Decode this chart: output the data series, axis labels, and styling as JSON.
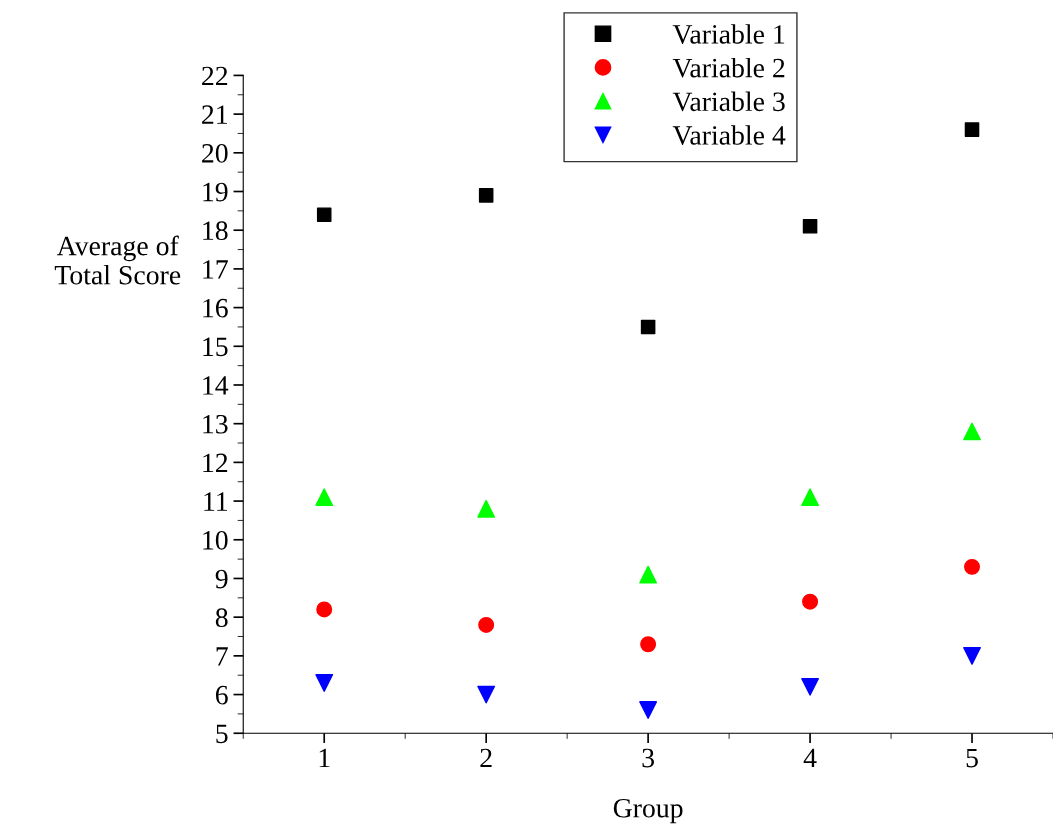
{
  "chart_data": {
    "type": "scatter",
    "xlabel": "Group",
    "ylabel": "Average of\nTotal Score",
    "x": [
      1,
      2,
      3,
      4,
      5
    ],
    "series": [
      {
        "name": "Variable 1",
        "color": "#000000",
        "marker": "square",
        "values": [
          18.4,
          18.9,
          15.5,
          18.1,
          20.6
        ]
      },
      {
        "name": "Variable 2",
        "color": "#ff0000",
        "marker": "circle",
        "values": [
          8.2,
          7.8,
          7.3,
          8.4,
          9.3
        ]
      },
      {
        "name": "Variable 3",
        "color": "#00ff00",
        "marker": "triangle",
        "values": [
          11.1,
          10.8,
          9.1,
          11.1,
          12.8
        ]
      },
      {
        "name": "Variable 4",
        "color": "#0000ff",
        "marker": "triangle-down",
        "values": [
          6.3,
          6.0,
          5.6,
          6.2,
          7.0
        ]
      }
    ],
    "xlim": [
      0.5,
      5.5
    ],
    "xticks": [
      1,
      2,
      3,
      4,
      5
    ],
    "ylim": [
      5,
      22
    ],
    "yticks": [
      5,
      6,
      7,
      8,
      9,
      10,
      11,
      12,
      13,
      14,
      15,
      16,
      17,
      18,
      19,
      20,
      21,
      22
    ],
    "grid": false,
    "legend": "top"
  }
}
